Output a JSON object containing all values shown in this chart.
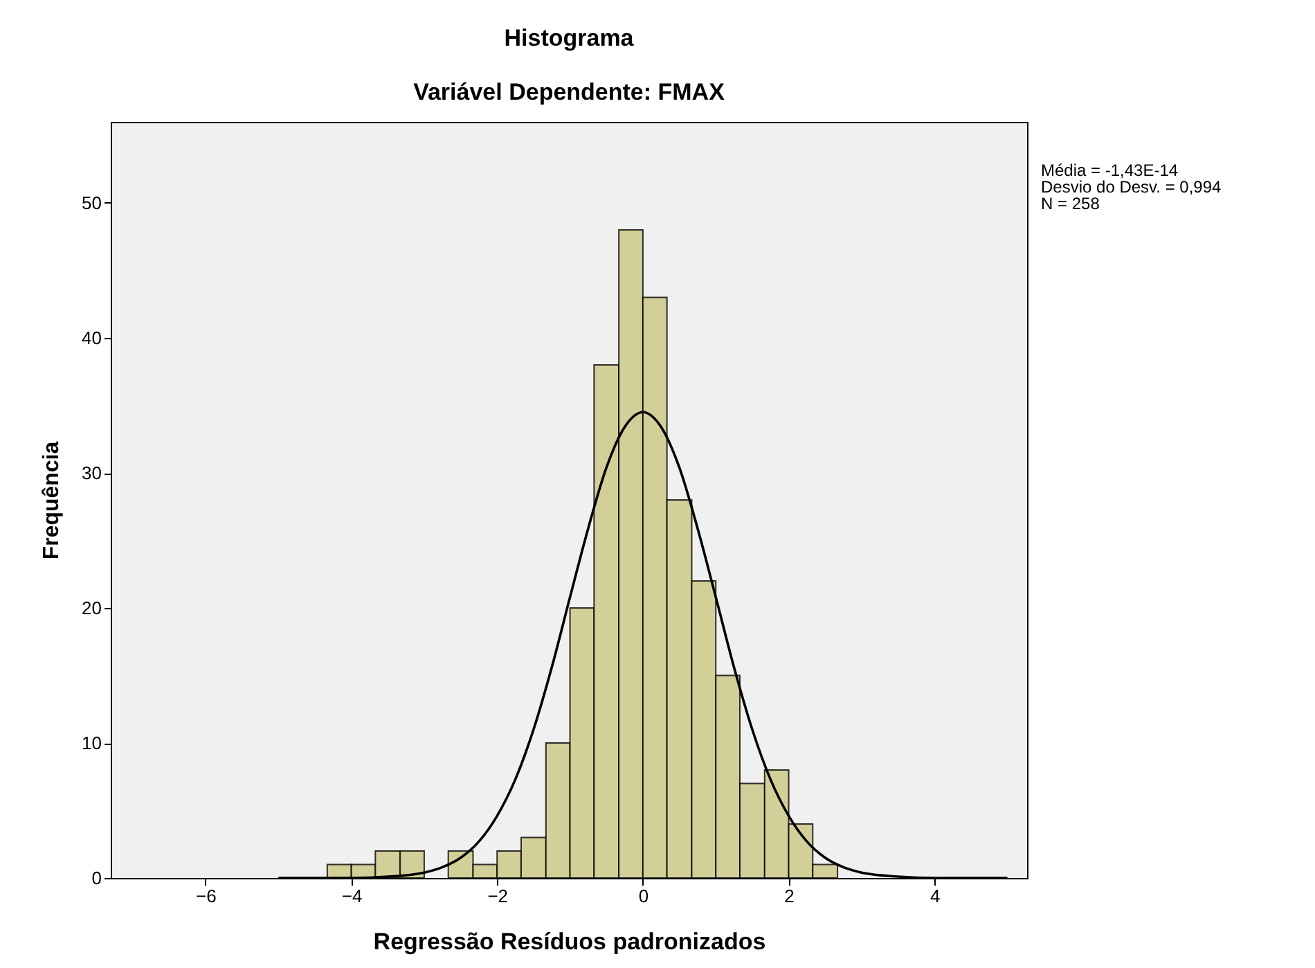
{
  "chart_data": {
    "type": "histogram",
    "title": "Histograma",
    "subtitle": "Variável Dependente: FMAX",
    "xlabel": "Regressão Resíduos padronizados",
    "ylabel": "Frequência",
    "bins": [
      -4.33,
      -4,
      -3.67,
      -3.33,
      -3,
      -2.67,
      -2.33,
      -2,
      -1.67,
      -1.33,
      -1,
      -0.67,
      -0.33,
      0,
      0.33,
      0.67,
      1,
      1.33,
      1.67,
      2,
      2.33,
      2.67
    ],
    "values": [
      1,
      1,
      2,
      2,
      0,
      2,
      1,
      2,
      3,
      10,
      20,
      38,
      48,
      43,
      28,
      22,
      15,
      7,
      8,
      4,
      1
    ],
    "color": "#d3cf98",
    "series": [
      {
        "type": "line",
        "color": "#000000",
        "x": [
          -5,
          -4.5,
          -4,
          -3.5,
          -3,
          -2.75,
          -2.5,
          -2.25,
          -2,
          -1.75,
          -1.5,
          -1.25,
          -1,
          -0.75,
          -0.5,
          -0.25,
          0,
          0.25,
          0.5,
          0.75,
          1,
          1.25,
          1.5,
          1.75,
          2,
          2.25,
          2.5,
          2.75,
          3,
          3.5,
          4,
          4.5,
          5
        ],
        "values": [
          0,
          0,
          0,
          0.1,
          0.4,
          0.8,
          1.5,
          2.7,
          4.6,
          7.3,
          11,
          15.6,
          20.8,
          25.9,
          30.4,
          33.4,
          34.5,
          33.4,
          30.4,
          25.9,
          20.8,
          15.6,
          11,
          7.3,
          4.6,
          2.7,
          1.5,
          0.8,
          0.4,
          0.1,
          0,
          0,
          0
        ]
      }
    ],
    "xlim": [
      -7.3,
      5.27
    ],
    "ylim": [
      0,
      56
    ],
    "xticks": [
      -6,
      -4,
      -2,
      0,
      2,
      4
    ],
    "yticks": [
      0,
      10,
      20,
      30,
      40,
      50
    ],
    "annotations": [
      "Média = -1,43E-14",
      " Desvio do Desv. = 0,994",
      "N = 258"
    ]
  }
}
